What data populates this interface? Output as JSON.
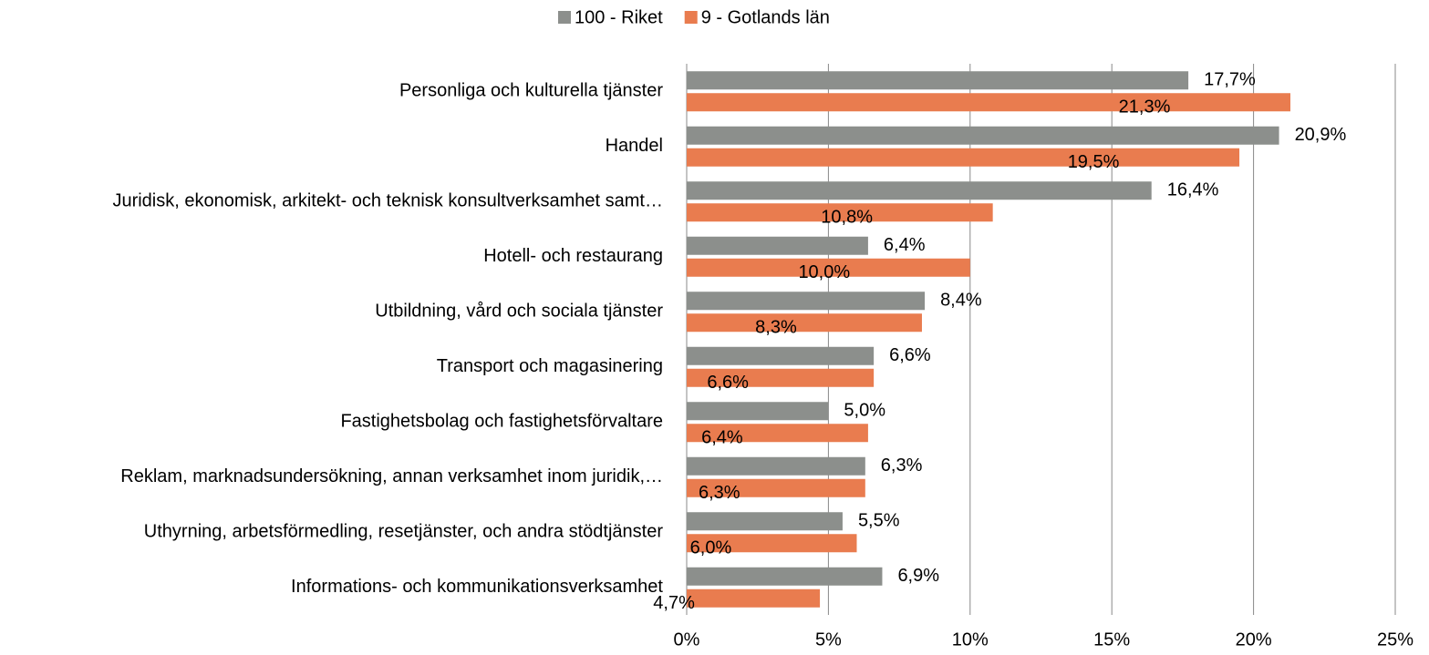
{
  "chart_data": {
    "type": "bar",
    "orientation": "horizontal",
    "categories": [
      "Personliga och kulturella tjänster",
      "Handel",
      "Juridisk, ekonomisk, arkitekt- och teknisk konsultverksamhet samt…",
      "Hotell- och restaurang",
      "Utbildning, vård och sociala tjänster",
      "Transport och magasinering",
      "Fastighetsbolag och fastighetsförvaltare",
      "Reklam, marknadsundersökning, annan verksamhet inom juridik,…",
      "Uthyrning, arbetsförmedling, resetjänster, och andra stödtjänster",
      "Informations- och kommunikationsverksamhet"
    ],
    "series": [
      {
        "name": "100 - Riket",
        "color": "#8c8f8c",
        "values": [
          17.7,
          20.9,
          16.4,
          6.4,
          8.4,
          6.6,
          5.0,
          6.3,
          5.5,
          6.9
        ],
        "value_labels": [
          "17,7%",
          "20,9%",
          "16,4%",
          "6,4%",
          "8,4%",
          "6,6%",
          "5,0%",
          "6,3%",
          "5,5%",
          "6,9%"
        ]
      },
      {
        "name": "9 - Gotlands län",
        "color": "#e97c4f",
        "values": [
          21.3,
          19.5,
          10.8,
          10.0,
          8.3,
          6.6,
          6.4,
          6.3,
          6.0,
          4.7
        ],
        "value_labels": [
          "21,3%",
          "19,5%",
          "10,8%",
          "10,0%",
          "8,3%",
          "6,6%",
          "6,4%",
          "6,3%",
          "6,0%",
          "4,7%"
        ]
      }
    ],
    "xlim": [
      0,
      25
    ],
    "xticks": [
      {
        "value": 0,
        "label": "0%"
      },
      {
        "value": 5,
        "label": "5%"
      },
      {
        "value": 10,
        "label": "10%"
      },
      {
        "value": 15,
        "label": "15%"
      },
      {
        "value": 20,
        "label": "20%"
      },
      {
        "value": 25,
        "label": "25%"
      }
    ],
    "grid": true,
    "legend": "top"
  }
}
